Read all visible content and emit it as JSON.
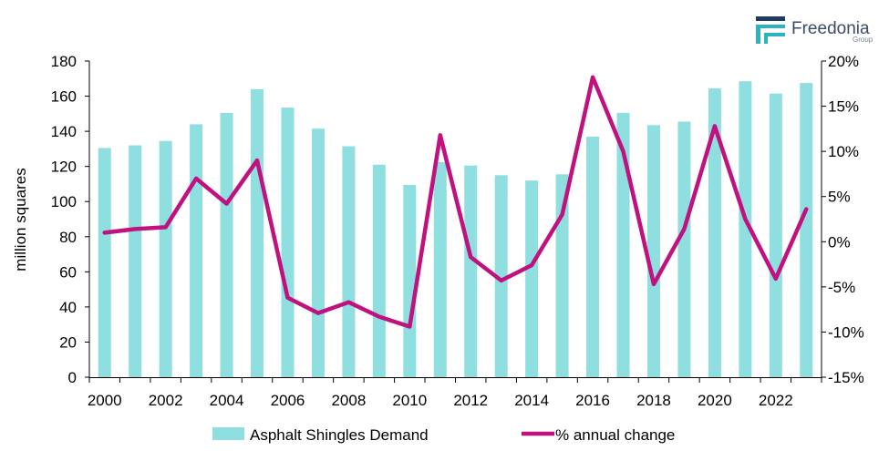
{
  "logo": {
    "name": "Freedonia",
    "sub": "Group",
    "colors": {
      "dark": "#1f3b63",
      "accent": "#2bb3c0"
    }
  },
  "chart_data": {
    "type": "bar",
    "categories": [
      2000,
      2001,
      2002,
      2003,
      2004,
      2005,
      2006,
      2007,
      2008,
      2009,
      2010,
      2011,
      2012,
      2013,
      2014,
      2015,
      2016,
      2017,
      2018,
      2019,
      2020,
      2021,
      2022,
      2023
    ],
    "x_tick_labels": [
      "2000",
      "2002",
      "2004",
      "2006",
      "2008",
      "2010",
      "2012",
      "2014",
      "2016",
      "2018",
      "2020",
      "2022"
    ],
    "series": [
      {
        "name": "Asphalt Shingles Demand",
        "type": "bar",
        "axis": "left",
        "color": "#8fdfe0",
        "values": [
          130.5,
          132,
          134.5,
          144,
          150.5,
          164,
          153.5,
          141.5,
          131.5,
          121,
          109.5,
          122.5,
          120.5,
          115,
          112,
          115.5,
          137,
          150.5,
          143.5,
          145.5,
          164.5,
          168.5,
          161.5,
          167.5
        ]
      },
      {
        "name": "% annual change",
        "type": "line",
        "axis": "right",
        "color": "#c0117e",
        "values": [
          1.0,
          1.4,
          1.6,
          7.0,
          4.2,
          9.0,
          -6.2,
          -7.9,
          -6.7,
          -8.3,
          -9.4,
          11.8,
          -1.7,
          -4.3,
          -2.6,
          3.0,
          18.2,
          10.0,
          -4.7,
          1.4,
          12.8,
          2.5,
          -4.1,
          3.6
        ]
      }
    ],
    "ylabel": "million squares",
    "y_left": {
      "min": 0,
      "max": 180,
      "step": 20,
      "tick_labels": [
        "0",
        "20",
        "40",
        "60",
        "80",
        "100",
        "120",
        "140",
        "160",
        "180"
      ]
    },
    "y_right": {
      "min": -15,
      "max": 20,
      "step": 5,
      "tick_labels": [
        "-15%",
        "-10%",
        "-5%",
        "0%",
        "5%",
        "10%",
        "15%",
        "20%"
      ]
    },
    "grid": false,
    "legend": {
      "placement": "bottom",
      "items": [
        "Asphalt Shingles Demand",
        "% annual change"
      ]
    }
  }
}
